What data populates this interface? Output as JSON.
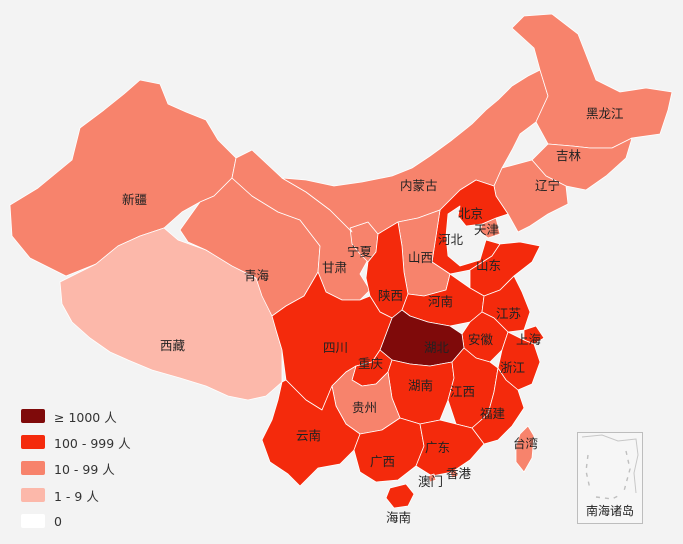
{
  "colors": {
    "background": "#f3f3f3",
    "level_1000_plus": "#7f0a0a",
    "level_100_999": "#f42a0c",
    "level_10_99": "#f7836c",
    "level_1_9": "#fcb8aa",
    "level_0": "#ffffff",
    "taiwan": "#f7836c"
  },
  "legend": [
    {
      "label": "≥ 1000 人",
      "color": "#7f0a0a"
    },
    {
      "label": "100 - 999 人",
      "color": "#f42a0c"
    },
    {
      "label": "10 - 99 人",
      "color": "#f7836c"
    },
    {
      "label": "1 - 9 人",
      "color": "#fcb8aa"
    },
    {
      "label": "0",
      "color": "#ffffff"
    }
  ],
  "regions": [
    {
      "id": "xinjiang",
      "name": "新疆",
      "level": "10-99"
    },
    {
      "id": "xizang",
      "name": "西藏",
      "level": "1-9"
    },
    {
      "id": "qinghai",
      "name": "青海",
      "level": "10-99"
    },
    {
      "id": "gansu",
      "name": "甘肃",
      "level": "10-99"
    },
    {
      "id": "ningxia",
      "name": "宁夏",
      "level": "10-99"
    },
    {
      "id": "neimenggu",
      "name": "内蒙古",
      "level": "10-99"
    },
    {
      "id": "heilongjiang",
      "name": "黑龙江",
      "level": "10-99"
    },
    {
      "id": "jilin",
      "name": "吉林",
      "level": "10-99"
    },
    {
      "id": "liaoning",
      "name": "辽宁",
      "level": "10-99"
    },
    {
      "id": "beijing",
      "name": "北京",
      "level": "100-999"
    },
    {
      "id": "tianjin",
      "name": "天津",
      "level": "10-99"
    },
    {
      "id": "hebei",
      "name": "河北",
      "level": "100-999"
    },
    {
      "id": "shanxi",
      "name": "山西",
      "level": "10-99"
    },
    {
      "id": "shandong",
      "name": "山东",
      "level": "100-999"
    },
    {
      "id": "shaanxi",
      "name": "陕西",
      "level": "100-999"
    },
    {
      "id": "henan",
      "name": "河南",
      "level": "100-999"
    },
    {
      "id": "jiangsu",
      "name": "江苏",
      "level": "100-999"
    },
    {
      "id": "shanghai",
      "name": "上海",
      "level": "100-999"
    },
    {
      "id": "anhui",
      "name": "安徽",
      "level": "100-999"
    },
    {
      "id": "hubei",
      "name": "湖北",
      "level": "1000+"
    },
    {
      "id": "sichuan",
      "name": "四川",
      "level": "100-999"
    },
    {
      "id": "chongqing",
      "name": "重庆",
      "level": "100-999"
    },
    {
      "id": "zhejiang",
      "name": "浙江",
      "level": "100-999"
    },
    {
      "id": "hunan",
      "name": "湖南",
      "level": "100-999"
    },
    {
      "id": "jiangxi",
      "name": "江西",
      "level": "100-999"
    },
    {
      "id": "guizhou",
      "name": "贵州",
      "level": "10-99"
    },
    {
      "id": "fujian",
      "name": "福建",
      "level": "100-999"
    },
    {
      "id": "yunnan",
      "name": "云南",
      "level": "100-999"
    },
    {
      "id": "guangxi",
      "name": "广西",
      "level": "100-999"
    },
    {
      "id": "guangdong",
      "name": "广东",
      "level": "100-999"
    },
    {
      "id": "taiwan",
      "name": "台湾",
      "level": "10-99"
    },
    {
      "id": "aomen",
      "name": "澳门",
      "level": "10-99"
    },
    {
      "id": "xianggang",
      "name": "香港",
      "level": "10-99"
    },
    {
      "id": "hainan",
      "name": "海南",
      "level": "100-999"
    }
  ],
  "inset": {
    "label": "南海诸岛"
  }
}
